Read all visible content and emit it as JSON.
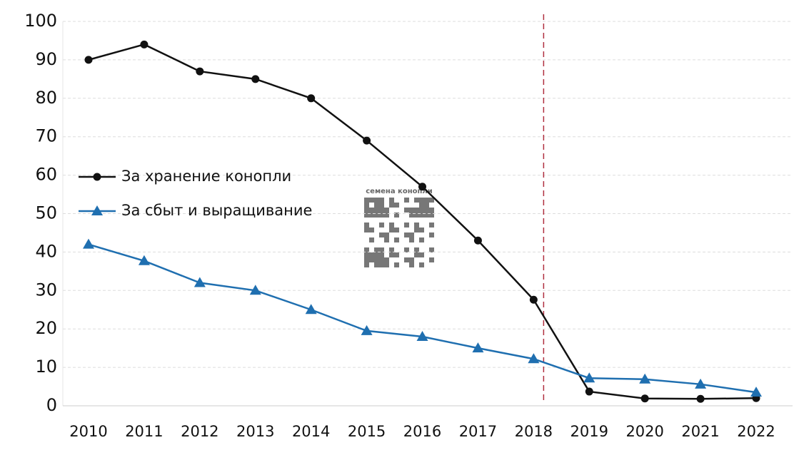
{
  "chart_data": {
    "type": "line",
    "categories": [
      "2010",
      "2011",
      "2012",
      "2013",
      "2014",
      "2015",
      "2016",
      "2017",
      "2018",
      "2019",
      "2020",
      "2021",
      "2022"
    ],
    "series": [
      {
        "name": "За хранение конопли",
        "color": "#111111",
        "marker": "circle",
        "values": [
          90,
          94,
          87,
          85,
          80,
          69,
          57,
          43,
          27.6,
          3.7,
          1.9,
          1.8,
          2
        ]
      },
      {
        "name": "За сбыт и выращивание",
        "color": "#1f6fb0",
        "marker": "triangle",
        "values": [
          42,
          37.7,
          32,
          30,
          25,
          19.5,
          18,
          15,
          12.2,
          7.2,
          6.9,
          5.6,
          3.5
        ]
      }
    ],
    "ylim": [
      0,
      100
    ],
    "yticks": [
      0,
      10,
      20,
      30,
      40,
      50,
      60,
      70,
      80,
      90,
      100
    ],
    "grid": true,
    "watermark": "семена конопли"
  }
}
